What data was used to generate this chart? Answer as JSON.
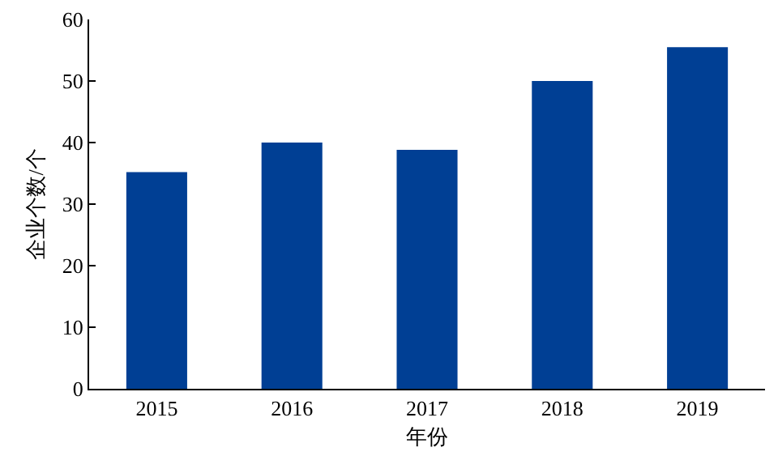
{
  "chart_data": {
    "type": "bar",
    "xlabel": "年份",
    "ylabel": "企业个数/个",
    "categories": [
      "2015",
      "2016",
      "2017",
      "2018",
      "2019"
    ],
    "values": [
      35.2,
      40,
      38.8,
      50,
      55.5
    ],
    "color": "#003f94",
    "ylim": [
      0,
      60
    ],
    "yticks": [
      0,
      10,
      20,
      30,
      40,
      50,
      60
    ],
    "grid": false,
    "legend": false
  }
}
